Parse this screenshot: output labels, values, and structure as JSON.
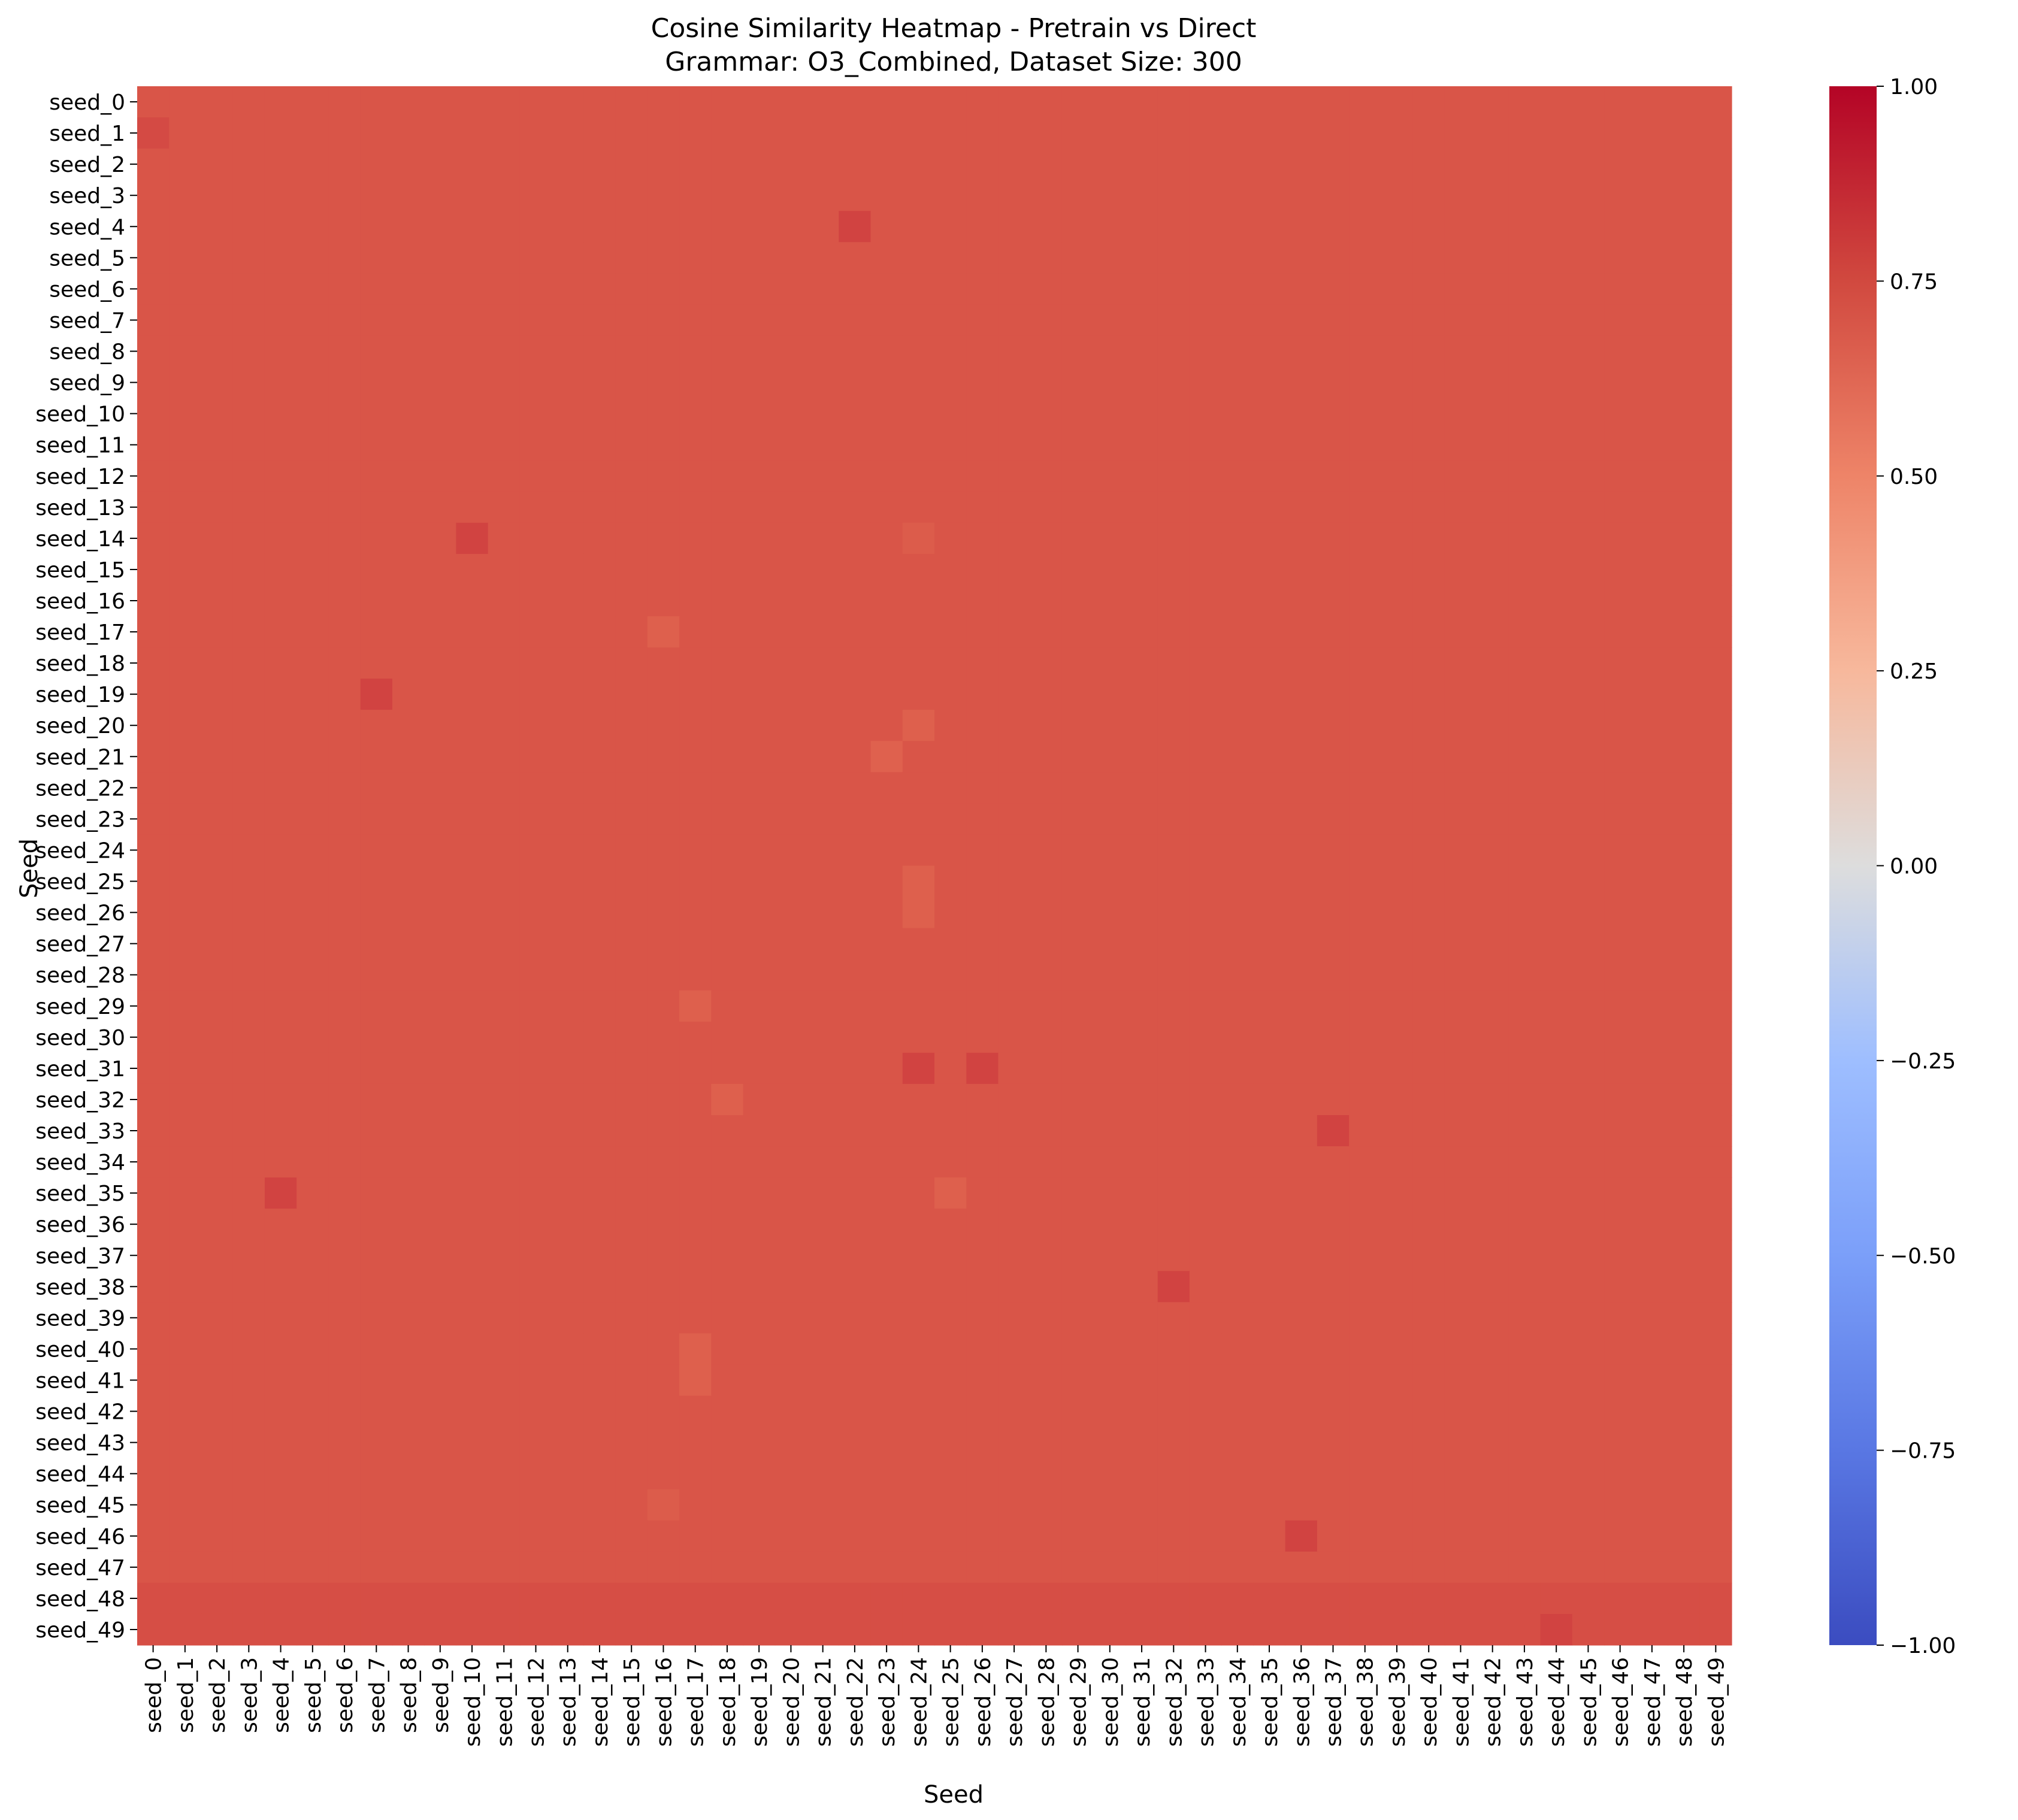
{
  "chart_data": {
    "type": "heatmap",
    "title": "Cosine Similarity Heatmap - Pretrain vs Direct",
    "subtitle": "Grammar: O3_Combined, Dataset Size: 300",
    "xlabel": "Seed",
    "ylabel": "Seed",
    "x_categories": [
      "seed_0",
      "seed_1",
      "seed_2",
      "seed_3",
      "seed_4",
      "seed_5",
      "seed_6",
      "seed_7",
      "seed_8",
      "seed_9",
      "seed_10",
      "seed_11",
      "seed_12",
      "seed_13",
      "seed_14",
      "seed_15",
      "seed_16",
      "seed_17",
      "seed_18",
      "seed_19",
      "seed_20",
      "seed_21",
      "seed_22",
      "seed_23",
      "seed_24",
      "seed_25",
      "seed_26",
      "seed_27",
      "seed_28",
      "seed_29",
      "seed_30",
      "seed_31",
      "seed_32",
      "seed_33",
      "seed_34",
      "seed_35",
      "seed_36",
      "seed_37",
      "seed_38",
      "seed_39",
      "seed_40",
      "seed_41",
      "seed_42",
      "seed_43",
      "seed_44",
      "seed_45",
      "seed_46",
      "seed_47",
      "seed_48",
      "seed_49"
    ],
    "y_categories": [
      "seed_0",
      "seed_1",
      "seed_2",
      "seed_3",
      "seed_4",
      "seed_5",
      "seed_6",
      "seed_7",
      "seed_8",
      "seed_9",
      "seed_10",
      "seed_11",
      "seed_12",
      "seed_13",
      "seed_14",
      "seed_15",
      "seed_16",
      "seed_17",
      "seed_18",
      "seed_19",
      "seed_20",
      "seed_21",
      "seed_22",
      "seed_23",
      "seed_24",
      "seed_25",
      "seed_26",
      "seed_27",
      "seed_28",
      "seed_29",
      "seed_30",
      "seed_31",
      "seed_32",
      "seed_33",
      "seed_34",
      "seed_35",
      "seed_36",
      "seed_37",
      "seed_38",
      "seed_39",
      "seed_40",
      "seed_41",
      "seed_42",
      "seed_43",
      "seed_44",
      "seed_45",
      "seed_46",
      "seed_47",
      "seed_48",
      "seed_49"
    ],
    "base_value": 0.78,
    "row_adjustments": [
      {
        "row": 48,
        "value": 0.8
      },
      {
        "row": 49,
        "value": 0.8
      }
    ],
    "cell_overrides": [
      {
        "row": 1,
        "col": 0,
        "value": 0.81
      },
      {
        "row": 4,
        "col": 22,
        "value": 0.83
      },
      {
        "row": 14,
        "col": 10,
        "value": 0.83
      },
      {
        "row": 19,
        "col": 7,
        "value": 0.83
      },
      {
        "row": 31,
        "col": 24,
        "value": 0.83
      },
      {
        "row": 31,
        "col": 26,
        "value": 0.83
      },
      {
        "row": 33,
        "col": 37,
        "value": 0.83
      },
      {
        "row": 35,
        "col": 4,
        "value": 0.83
      },
      {
        "row": 38,
        "col": 32,
        "value": 0.83
      },
      {
        "row": 46,
        "col": 36,
        "value": 0.83
      },
      {
        "row": 49,
        "col": 44,
        "value": 0.83
      },
      {
        "row": 17,
        "col": 16,
        "value": 0.75
      },
      {
        "row": 20,
        "col": 24,
        "value": 0.75
      },
      {
        "row": 21,
        "col": 23,
        "value": 0.74
      },
      {
        "row": 25,
        "col": 24,
        "value": 0.75
      },
      {
        "row": 26,
        "col": 24,
        "value": 0.75
      },
      {
        "row": 29,
        "col": 17,
        "value": 0.75
      },
      {
        "row": 32,
        "col": 18,
        "value": 0.75
      },
      {
        "row": 35,
        "col": 25,
        "value": 0.75
      },
      {
        "row": 40,
        "col": 17,
        "value": 0.75
      },
      {
        "row": 41,
        "col": 17,
        "value": 0.75
      },
      {
        "row": 45,
        "col": 16,
        "value": 0.76
      },
      {
        "row": 14,
        "col": 24,
        "value": 0.76
      }
    ],
    "colorbar": {
      "colormap": "coolwarm",
      "min": -1.0,
      "max": 1.0,
      "ticks": [
        "1.00",
        "0.75",
        "0.50",
        "0.25",
        "0.00",
        "−0.25",
        "−0.50",
        "−0.75",
        "−1.00"
      ],
      "tick_values": [
        1.0,
        0.75,
        0.5,
        0.25,
        0.0,
        -0.25,
        -0.5,
        -0.75,
        -1.0
      ]
    },
    "grid": false,
    "legend": "colorbar-right"
  }
}
